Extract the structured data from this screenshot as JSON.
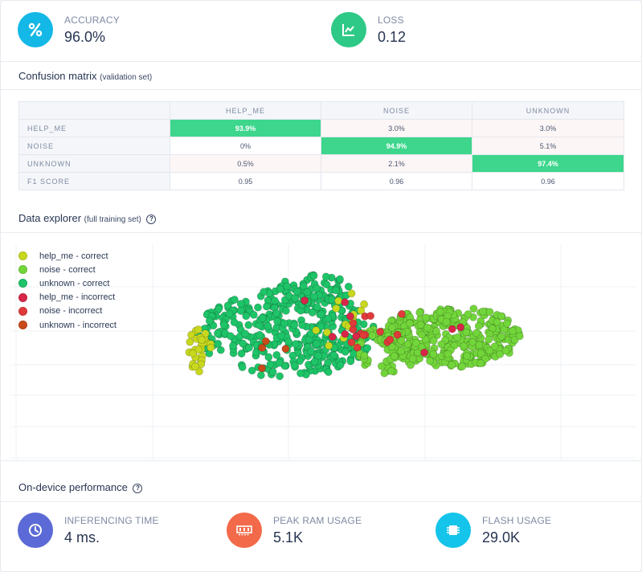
{
  "metrics": {
    "accuracy": {
      "label": "ACCURACY",
      "value": "96.0%",
      "icon": "percent-icon",
      "color": "#14b8e6"
    },
    "loss": {
      "label": "LOSS",
      "value": "0.12",
      "icon": "line-chart-icon",
      "color": "#2ec986"
    }
  },
  "confusion": {
    "title": "Confusion matrix",
    "subtitle": "(validation set)",
    "columns": [
      "HELP_ME",
      "NOISE",
      "UNKNOWN"
    ],
    "rows": [
      {
        "label": "HELP_ME",
        "cells": [
          "93.9%",
          "3.0%",
          "3.0%"
        ]
      },
      {
        "label": "NOISE",
        "cells": [
          "0%",
          "94.9%",
          "5.1%"
        ]
      },
      {
        "label": "UNKNOWN",
        "cells": [
          "0.5%",
          "2.1%",
          "97.4%"
        ]
      }
    ],
    "f1": {
      "label": "F1 SCORE",
      "cells": [
        "0.95",
        "0.96",
        "0.96"
      ]
    },
    "diag_color": "#3dd68c"
  },
  "explorer": {
    "title": "Data explorer",
    "subtitle": "(full training set)",
    "legend": [
      {
        "label": "help_me - correct",
        "color": "#c8d81e"
      },
      {
        "label": "noise - correct",
        "color": "#72d63a"
      },
      {
        "label": "unknown - correct",
        "color": "#1ec468"
      },
      {
        "label": "help_me - incorrect",
        "color": "#d8264a"
      },
      {
        "label": "noise - incorrect",
        "color": "#e03a3a"
      },
      {
        "label": "unknown - incorrect",
        "color": "#c94a1a"
      }
    ]
  },
  "performance": {
    "title": "On-device performance",
    "inferencing": {
      "label": "INFERENCING TIME",
      "value": "4 ms.",
      "icon": "clock-icon",
      "color": "#5b6ad6"
    },
    "ram": {
      "label": "PEAK RAM USAGE",
      "value": "5.1K",
      "icon": "memory-icon",
      "color": "#f26a4a"
    },
    "flash": {
      "label": "FLASH USAGE",
      "value": "29.0K",
      "icon": "chip-icon",
      "color": "#14c4ea"
    }
  }
}
